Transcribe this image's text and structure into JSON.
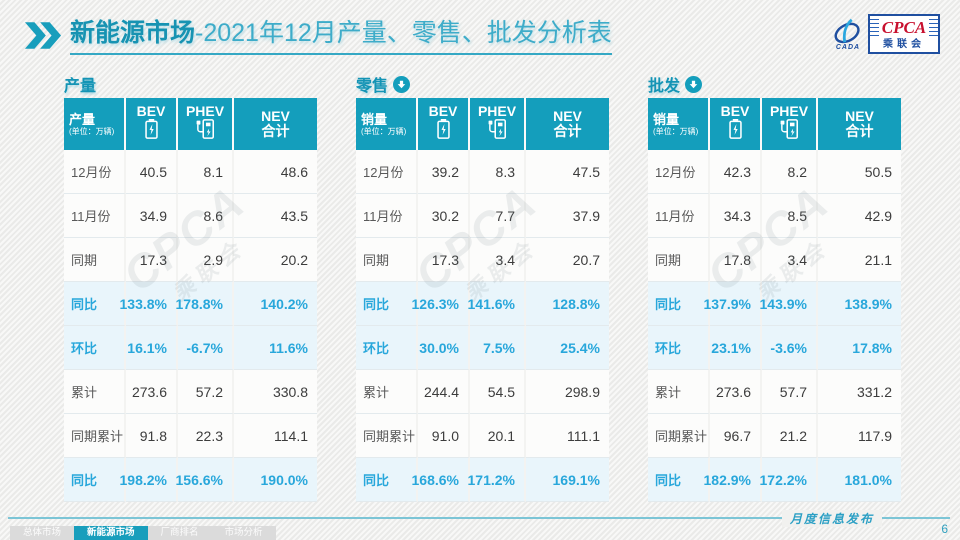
{
  "title": {
    "highlight": "新能源市场",
    "rest": "-2021年12月产量、零售、批发分析表"
  },
  "logo": {
    "emblem_caption": "CADA",
    "cpca": "CPCA",
    "cpca_cn": "乘联会"
  },
  "columns": {
    "bev": "BEV",
    "phev": "PHEV",
    "nev_top": "NEV",
    "nev_bottom": "合计"
  },
  "watermark": {
    "line1": "CPCA",
    "line2": "乘联会"
  },
  "tables": [
    {
      "section_title": "产量",
      "header_label": "产量",
      "header_unit": "(单位：万辆)",
      "rows": [
        {
          "label": "12月份",
          "values": [
            "40.5",
            "8.1",
            "48.6"
          ],
          "highlight": false
        },
        {
          "label": "11月份",
          "values": [
            "34.9",
            "8.6",
            "43.5"
          ],
          "highlight": false
        },
        {
          "label": "同期",
          "values": [
            "17.3",
            "2.9",
            "20.2"
          ],
          "highlight": false
        },
        {
          "label": "同比",
          "values": [
            "133.8%",
            "178.8%",
            "140.2%"
          ],
          "highlight": true
        },
        {
          "label": "环比",
          "values": [
            "16.1%",
            "-6.7%",
            "11.6%"
          ],
          "highlight": true
        },
        {
          "label": "累计",
          "values": [
            "273.6",
            "57.2",
            "330.8"
          ],
          "highlight": false
        },
        {
          "label": "同期累计",
          "values": [
            "91.8",
            "22.3",
            "114.1"
          ],
          "highlight": false
        },
        {
          "label": "同比",
          "values": [
            "198.2%",
            "156.6%",
            "190.0%"
          ],
          "highlight": true
        }
      ]
    },
    {
      "section_title": "零售",
      "header_label": "销量",
      "header_unit": "(单位：万辆)",
      "rows": [
        {
          "label": "12月份",
          "values": [
            "39.2",
            "8.3",
            "47.5"
          ],
          "highlight": false
        },
        {
          "label": "11月份",
          "values": [
            "30.2",
            "7.7",
            "37.9"
          ],
          "highlight": false
        },
        {
          "label": "同期",
          "values": [
            "17.3",
            "3.4",
            "20.7"
          ],
          "highlight": false
        },
        {
          "label": "同比",
          "values": [
            "126.3%",
            "141.6%",
            "128.8%"
          ],
          "highlight": true
        },
        {
          "label": "环比",
          "values": [
            "30.0%",
            "7.5%",
            "25.4%"
          ],
          "highlight": true
        },
        {
          "label": "累计",
          "values": [
            "244.4",
            "54.5",
            "298.9"
          ],
          "highlight": false
        },
        {
          "label": "同期累计",
          "values": [
            "91.0",
            "20.1",
            "111.1"
          ],
          "highlight": false
        },
        {
          "label": "同比",
          "values": [
            "168.6%",
            "171.2%",
            "169.1%"
          ],
          "highlight": true
        }
      ]
    },
    {
      "section_title": "批发",
      "header_label": "销量",
      "header_unit": "(单位：万辆)",
      "rows": [
        {
          "label": "12月份",
          "values": [
            "42.3",
            "8.2",
            "50.5"
          ],
          "highlight": false
        },
        {
          "label": "11月份",
          "values": [
            "34.3",
            "8.5",
            "42.9"
          ],
          "highlight": false
        },
        {
          "label": "同期",
          "values": [
            "17.8",
            "3.4",
            "21.1"
          ],
          "highlight": false
        },
        {
          "label": "同比",
          "values": [
            "137.9%",
            "143.9%",
            "138.9%"
          ],
          "highlight": true
        },
        {
          "label": "环比",
          "values": [
            "23.1%",
            "-3.6%",
            "17.8%"
          ],
          "highlight": true
        },
        {
          "label": "累计",
          "values": [
            "273.6",
            "57.7",
            "331.2"
          ],
          "highlight": false
        },
        {
          "label": "同期累计",
          "values": [
            "96.7",
            "21.2",
            "117.9"
          ],
          "highlight": false
        },
        {
          "label": "同比",
          "values": [
            "182.9%",
            "172.2%",
            "181.0%"
          ],
          "highlight": true
        }
      ]
    }
  ],
  "footer": {
    "tabs": [
      {
        "label": "总体市场",
        "active": false
      },
      {
        "label": "新能源市场",
        "active": true
      },
      {
        "label": "厂商排名",
        "active": false
      },
      {
        "label": "市场分析",
        "active": false
      }
    ],
    "caption": "月度信息发布",
    "page_number": "6"
  },
  "colors": {
    "accent": "#149EBC",
    "title_dark": "#1793B2",
    "title_light": "#3EACC9",
    "highlight_text": "#28A7DB",
    "highlight_bg": "#E9F5FB",
    "logo_red": "#C8102E",
    "logo_blue": "#1F4FA0"
  }
}
